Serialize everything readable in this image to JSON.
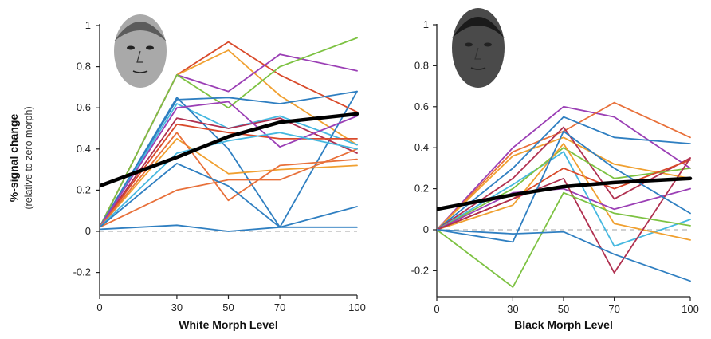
{
  "figure": {
    "ylabel_line1": "%-signal change",
    "ylabel_line2": "(relative to zero morph)"
  },
  "chart_data": [
    {
      "type": "line",
      "xlabel": "White Morph Level",
      "ylabel": "%-signal change (relative to zero morph)",
      "x": [
        0,
        30,
        50,
        70,
        100
      ],
      "xticks": [
        "0",
        "30",
        "50",
        "70",
        "100"
      ],
      "yticks": [
        "-0.2",
        "0",
        "0.2",
        "0.4",
        "0.6",
        "0.8",
        "1"
      ],
      "xlim": [
        0,
        100
      ],
      "ylim": [
        -0.2,
        1
      ],
      "reference_line_y": 0,
      "face_icon": "white-face-photo",
      "series": [
        {
          "color": "#d94a2b",
          "values": [
            0.02,
            0.76,
            0.92,
            0.76,
            0.58
          ]
        },
        {
          "color": "#f0a030",
          "values": [
            0.02,
            0.76,
            0.88,
            0.66,
            0.42
          ]
        },
        {
          "color": "#9b3fb5",
          "values": [
            0.02,
            0.76,
            0.68,
            0.86,
            0.78
          ]
        },
        {
          "color": "#7dc242",
          "values": [
            0.02,
            0.76,
            0.6,
            0.8,
            0.94
          ]
        },
        {
          "color": "#2f7fc1",
          "values": [
            0.02,
            0.64,
            0.65,
            0.62,
            0.68
          ]
        },
        {
          "color": "#46b8e0",
          "values": [
            0.02,
            0.62,
            0.5,
            0.56,
            0.42
          ]
        },
        {
          "color": "#2f7fc1",
          "values": [
            0.02,
            0.65,
            0.4,
            0.02,
            0.68
          ]
        },
        {
          "color": "#b03050",
          "values": [
            0.02,
            0.55,
            0.5,
            0.55,
            0.38
          ]
        },
        {
          "color": "#d94a2b",
          "values": [
            0.02,
            0.52,
            0.48,
            0.45,
            0.45
          ]
        },
        {
          "color": "#9b3fb5",
          "values": [
            0.02,
            0.6,
            0.63,
            0.41,
            0.56
          ]
        },
        {
          "color": "#f0a030",
          "values": [
            0.02,
            0.45,
            0.28,
            0.3,
            0.32
          ]
        },
        {
          "color": "#e8703a",
          "values": [
            0.02,
            0.48,
            0.15,
            0.32,
            0.35
          ]
        },
        {
          "color": "#e8703a",
          "values": [
            0.02,
            0.2,
            0.25,
            0.25,
            0.4
          ]
        },
        {
          "color": "#46b8e0",
          "values": [
            0.02,
            0.38,
            0.44,
            0.48,
            0.4
          ]
        },
        {
          "color": "#2f7fc1",
          "values": [
            0.02,
            0.33,
            0.22,
            0.02,
            0.12
          ]
        },
        {
          "color": "#2f7fc1",
          "values": [
            0.01,
            0.03,
            0.0,
            0.02,
            0.02
          ]
        },
        {
          "color": "#000000",
          "bold": true,
          "values": [
            0.22,
            0.36,
            0.46,
            0.53,
            0.57
          ]
        }
      ]
    },
    {
      "type": "line",
      "xlabel": "Black Morph Level",
      "ylabel": "",
      "x": [
        0,
        30,
        50,
        70,
        100
      ],
      "xticks": [
        "0",
        "30",
        "50",
        "70",
        "100"
      ],
      "yticks": [
        "-0.2",
        "0",
        "0.2",
        "0.4",
        "0.6",
        "0.8",
        "1"
      ],
      "xlim": [
        0,
        100
      ],
      "ylim": [
        -0.25,
        1
      ],
      "reference_line_y": 0,
      "face_icon": "black-face-photo",
      "series": [
        {
          "color": "#9b3fb5",
          "values": [
            0.0,
            0.4,
            0.6,
            0.55,
            0.3
          ]
        },
        {
          "color": "#e8703a",
          "values": [
            0.0,
            0.38,
            0.48,
            0.62,
            0.45
          ]
        },
        {
          "color": "#f0a030",
          "values": [
            0.0,
            0.36,
            0.45,
            0.32,
            0.25
          ]
        },
        {
          "color": "#2f7fc1",
          "values": [
            0.0,
            0.3,
            0.55,
            0.45,
            0.42
          ]
        },
        {
          "color": "#b03050",
          "values": [
            0.0,
            0.25,
            0.5,
            0.15,
            0.35
          ]
        },
        {
          "color": "#46b8e0",
          "values": [
            0.0,
            0.22,
            0.38,
            -0.08,
            0.05
          ]
        },
        {
          "color": "#7dc242",
          "values": [
            0.0,
            0.2,
            0.4,
            0.25,
            0.3
          ]
        },
        {
          "color": "#d94a2b",
          "values": [
            0.0,
            0.15,
            0.3,
            0.2,
            0.34
          ]
        },
        {
          "color": "#f0a030",
          "values": [
            0.0,
            0.12,
            0.42,
            0.03,
            -0.05
          ]
        },
        {
          "color": "#9b3fb5",
          "values": [
            0.0,
            0.18,
            0.2,
            0.1,
            0.2
          ]
        },
        {
          "color": "#b03050",
          "values": [
            0.0,
            0.15,
            0.25,
            -0.21,
            0.35
          ]
        },
        {
          "color": "#2f7fc1",
          "values": [
            0.0,
            -0.06,
            0.48,
            0.3,
            0.08
          ]
        },
        {
          "color": "#7dc242",
          "values": [
            0.0,
            -0.28,
            0.18,
            0.08,
            0.02
          ]
        },
        {
          "color": "#2f7fc1",
          "values": [
            0.0,
            -0.02,
            -0.01,
            -0.12,
            -0.25
          ]
        },
        {
          "color": "#000000",
          "bold": true,
          "values": [
            0.1,
            0.17,
            0.21,
            0.23,
            0.25
          ]
        }
      ]
    }
  ]
}
